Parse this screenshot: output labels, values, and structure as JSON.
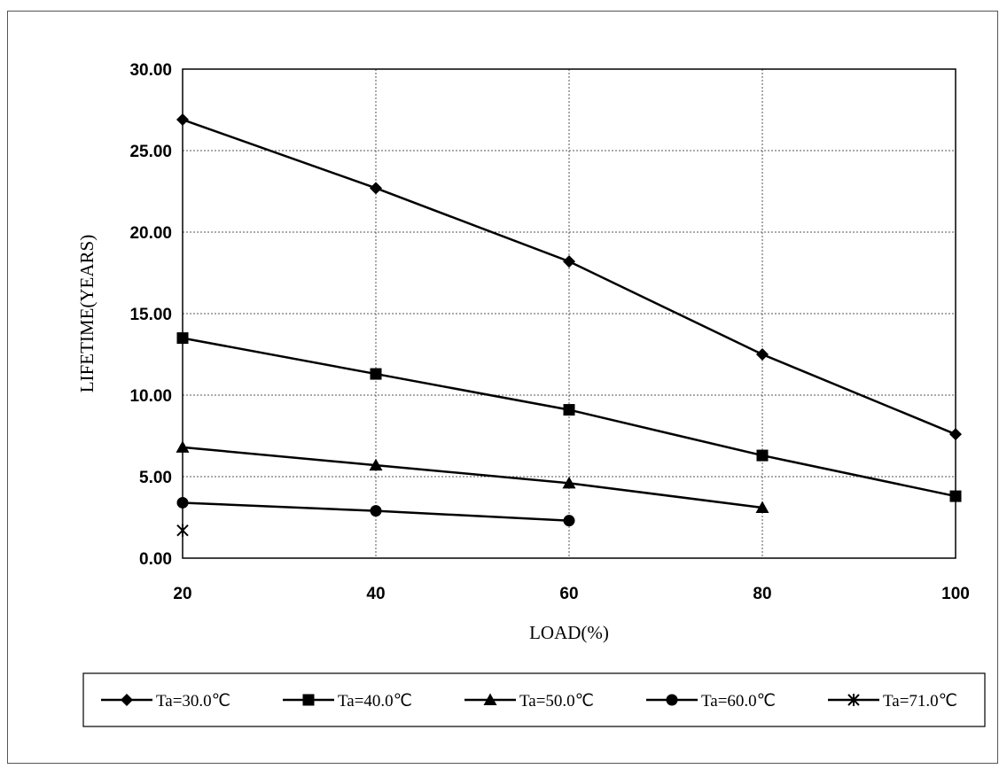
{
  "chart_data": {
    "type": "line",
    "xlabel": "LOAD(%)",
    "ylabel": "LIFETIME(YEARS)",
    "x": [
      20,
      40,
      60,
      80,
      100
    ],
    "xlim": [
      20,
      100
    ],
    "ylim": [
      0,
      30
    ],
    "x_ticks": [
      "20",
      "40",
      "60",
      "80",
      "100"
    ],
    "y_ticks": [
      "0.00",
      "5.00",
      "10.00",
      "15.00",
      "20.00",
      "25.00",
      "30.00"
    ],
    "grid": true,
    "legend_position": "bottom",
    "series": [
      {
        "name": "Ta=30.0℃",
        "marker": "diamond",
        "color": "#000000",
        "points": [
          [
            20,
            26.9
          ],
          [
            40,
            22.7
          ],
          [
            60,
            18.2
          ],
          [
            80,
            12.5
          ],
          [
            100,
            7.6
          ]
        ]
      },
      {
        "name": "Ta=40.0℃",
        "marker": "square",
        "color": "#000000",
        "points": [
          [
            20,
            13.5
          ],
          [
            40,
            11.3
          ],
          [
            60,
            9.1
          ],
          [
            80,
            6.3
          ],
          [
            100,
            3.8
          ]
        ]
      },
      {
        "name": "Ta=50.0℃",
        "marker": "triangle",
        "color": "#000000",
        "points": [
          [
            20,
            6.8
          ],
          [
            40,
            5.7
          ],
          [
            60,
            4.6
          ],
          [
            80,
            3.1
          ]
        ]
      },
      {
        "name": "Ta=60.0℃",
        "marker": "circle",
        "color": "#000000",
        "points": [
          [
            20,
            3.4
          ],
          [
            40,
            2.9
          ],
          [
            60,
            2.3
          ]
        ]
      },
      {
        "name": "Ta=71.0℃",
        "marker": "asterisk",
        "color": "#000000",
        "points": [
          [
            20,
            1.7
          ]
        ]
      }
    ]
  }
}
